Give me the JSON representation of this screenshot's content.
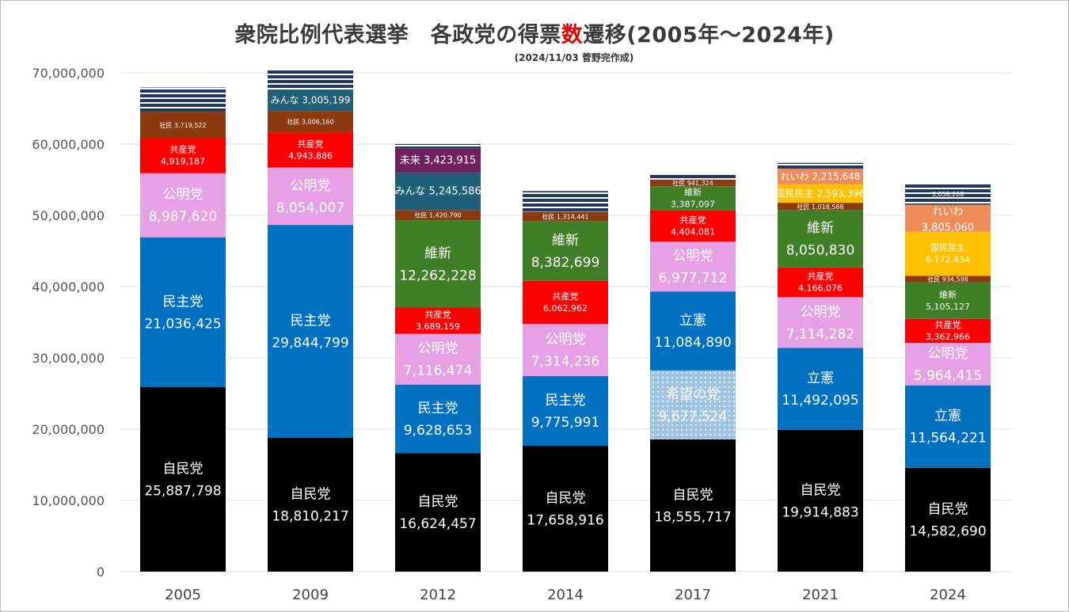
{
  "title": {
    "main_a": "衆院比例代表選挙　各政党の得票",
    "main_b": "数",
    "main_c": "遷移(2005年～2024年)"
  },
  "subtitle": "(2024/11/03 菅野完作成)",
  "colors": {
    "jimin": "#000000",
    "minshu": "#0070c0",
    "rikken": "#0070c0",
    "kibou": "#9dc3e6",
    "komei": "#e6a0e6",
    "kyosan": "#ff0000",
    "shamin": "#8b3a10",
    "minna": "#1f5f7a",
    "mirai": "#702060",
    "ishin": "#3f7f27",
    "kokumin": "#ffc000",
    "reiwa": "#f08c5a",
    "other": "#1f3864",
    "grid": "#e0e0e0"
  },
  "chart_data": {
    "type": "bar",
    "stacked": true,
    "title": "衆院比例代表選挙　各政党の得票数遷移(2005年～2024年)",
    "xlabel": "",
    "ylabel": "",
    "ylim": [
      0,
      70000000
    ],
    "yticks": [
      "0",
      "10,000,000",
      "20,000,000",
      "30,000,000",
      "40,000,000",
      "50,000,000",
      "60,000,000",
      "70,000,000"
    ],
    "categories": [
      "2005",
      "2009",
      "2012",
      "2014",
      "2017",
      "2021",
      "2024"
    ],
    "bars": [
      {
        "year": "2005",
        "segments": [
          {
            "key": "jimin",
            "name": "自民党",
            "value": 25887798,
            "label": "25,887,798",
            "size": "big"
          },
          {
            "key": "minshu",
            "name": "民主党",
            "value": 21036425,
            "label": "21,036,425",
            "size": "big"
          },
          {
            "key": "komei",
            "name": "公明党",
            "value": 8987620,
            "label": "8,987,620",
            "size": "big"
          },
          {
            "key": "kyosan",
            "name": "共産党",
            "value": 4919187,
            "label": "4,919,187",
            "size": "small"
          },
          {
            "key": "shamin",
            "name": "社民",
            "value": 3719522,
            "label": "3,719,522",
            "size": "tiny"
          },
          {
            "key": "other",
            "name": "",
            "value": 3400000,
            "label": "",
            "size": "none"
          }
        ]
      },
      {
        "year": "2009",
        "segments": [
          {
            "key": "jimin",
            "name": "自民党",
            "value": 18810217,
            "label": "18,810,217",
            "size": "big"
          },
          {
            "key": "minshu",
            "name": "民主党",
            "value": 29844799,
            "label": "29,844,799",
            "size": "big"
          },
          {
            "key": "komei",
            "name": "公明党",
            "value": 8054007,
            "label": "8,054,007",
            "size": "big"
          },
          {
            "key": "kyosan",
            "name": "共産党",
            "value": 4943886,
            "label": "4,943,886",
            "size": "small"
          },
          {
            "key": "shamin",
            "name": "社民",
            "value": 3006160,
            "label": "3,006,160",
            "size": "tiny"
          },
          {
            "key": "minna",
            "name": "みんな",
            "value": 3005199,
            "label": "3,005,199",
            "size": "inline"
          },
          {
            "key": "other",
            "name": "",
            "value": 2800000,
            "label": "",
            "size": "none"
          }
        ]
      },
      {
        "year": "2012",
        "segments": [
          {
            "key": "jimin",
            "name": "自民党",
            "value": 16624457,
            "label": "16,624,457",
            "size": "big"
          },
          {
            "key": "minshu",
            "name": "民主党",
            "value": 9628653,
            "label": "9,628,653",
            "size": "big"
          },
          {
            "key": "komei",
            "name": "公明党",
            "value": 7116474,
            "label": "7,116,474",
            "size": "big"
          },
          {
            "key": "kyosan",
            "name": "共産党",
            "value": 3689159,
            "label": "3,689,159",
            "size": "small"
          },
          {
            "key": "ishin",
            "name": "維新",
            "value": 12262228,
            "label": "12,262,228",
            "size": "big"
          },
          {
            "key": "shamin",
            "name": "社民",
            "value": 1420790,
            "label": "1,420,790",
            "size": "tiny"
          },
          {
            "key": "minna",
            "name": "みんな",
            "value": 5245586,
            "label": "5,245,586",
            "size": "inline"
          },
          {
            "key": "mirai",
            "name": "未来",
            "value": 3423915,
            "label": "3,423,915",
            "size": "inline"
          },
          {
            "key": "other",
            "name": "",
            "value": 600000,
            "label": "",
            "size": "none"
          }
        ]
      },
      {
        "year": "2014",
        "segments": [
          {
            "key": "jimin",
            "name": "自民党",
            "value": 17658916,
            "label": "17,658,916",
            "size": "big"
          },
          {
            "key": "minshu",
            "name": "民主党",
            "value": 9775991,
            "label": "9,775,991",
            "size": "big"
          },
          {
            "key": "komei",
            "name": "公明党",
            "value": 7314236,
            "label": "7,314,236",
            "size": "big"
          },
          {
            "key": "kyosan",
            "name": "共産党",
            "value": 6062962,
            "label": "6,062,962",
            "size": "small"
          },
          {
            "key": "ishin",
            "name": "維新",
            "value": 8382699,
            "label": "8,382,699",
            "size": "big"
          },
          {
            "key": "shamin",
            "name": "社民",
            "value": 1314441,
            "label": "1,314,441",
            "size": "tiny"
          },
          {
            "key": "other",
            "name": "",
            "value": 2900000,
            "label": "",
            "size": "none"
          }
        ]
      },
      {
        "year": "2017",
        "segments": [
          {
            "key": "jimin",
            "name": "自民党",
            "value": 18555717,
            "label": "18,555,717",
            "size": "big"
          },
          {
            "key": "kibou",
            "name": "希望の党",
            "value": 9677524,
            "label": "9,677,524",
            "size": "big"
          },
          {
            "key": "rikken",
            "name": "立憲",
            "value": 11084890,
            "label": "11,084,890",
            "size": "big"
          },
          {
            "key": "komei",
            "name": "公明党",
            "value": 6977712,
            "label": "6,977,712",
            "size": "big"
          },
          {
            "key": "kyosan",
            "name": "共産党",
            "value": 4404081,
            "label": "4,404,081",
            "size": "small"
          },
          {
            "key": "ishin",
            "name": "維新",
            "value": 3387097,
            "label": "3,387,097",
            "size": "small"
          },
          {
            "key": "shamin",
            "name": "社民",
            "value": 941324,
            "label": "941,324",
            "size": "tiny"
          },
          {
            "key": "other",
            "name": "",
            "value": 700000,
            "label": "",
            "size": "none"
          }
        ]
      },
      {
        "year": "2021",
        "segments": [
          {
            "key": "jimin",
            "name": "自民党",
            "value": 19914883,
            "label": "19,914,883",
            "size": "big"
          },
          {
            "key": "rikken",
            "name": "立憲",
            "value": 11492095,
            "label": "11,492,095",
            "size": "big"
          },
          {
            "key": "komei",
            "name": "公明党",
            "value": 7114282,
            "label": "7,114,282",
            "size": "big"
          },
          {
            "key": "kyosan",
            "name": "共産党",
            "value": 4166076,
            "label": "4,166,076",
            "size": "small"
          },
          {
            "key": "ishin",
            "name": "維新",
            "value": 8050830,
            "label": "8,050,830",
            "size": "big"
          },
          {
            "key": "shamin",
            "name": "社民",
            "value": 1018588,
            "label": "1,018,588",
            "size": "tiny"
          },
          {
            "key": "kokumin",
            "name": "国民民主",
            "value": 2593396,
            "label": "2,593,396",
            "size": "inline"
          },
          {
            "key": "reiwa",
            "name": "れいわ",
            "value": 2215648,
            "label": "2,215,648",
            "size": "inline"
          },
          {
            "key": "other",
            "name": "",
            "value": 800000,
            "label": "",
            "size": "none"
          }
        ]
      },
      {
        "year": "2024",
        "segments": [
          {
            "key": "jimin",
            "name": "自民党",
            "value": 14582690,
            "label": "14,582,690",
            "size": "big"
          },
          {
            "key": "rikken",
            "name": "立憲",
            "value": 11564221,
            "label": "11,564,221",
            "size": "big"
          },
          {
            "key": "komei",
            "name": "公明党",
            "value": 5964415,
            "label": "5,964,415",
            "size": "big"
          },
          {
            "key": "kyosan",
            "name": "共産党",
            "value": 3362966,
            "label": "3,362,966",
            "size": "small"
          },
          {
            "key": "ishin",
            "name": "維新",
            "value": 5105127,
            "label": "5,105,127",
            "size": "small"
          },
          {
            "key": "shamin",
            "name": "社民",
            "value": 934598,
            "label": "934,598",
            "size": "tiny"
          },
          {
            "key": "kokumin",
            "name": "国民民主",
            "value": 6172434,
            "label": "6,172,434",
            "size": "small"
          },
          {
            "key": "reiwa",
            "name": "れいわ",
            "value": 3805060,
            "label": "3,805,060",
            "size": "mid"
          },
          {
            "key": "other",
            "name": "",
            "value": 3058208,
            "label": "3,058,208",
            "size": "tiny"
          }
        ]
      }
    ]
  }
}
